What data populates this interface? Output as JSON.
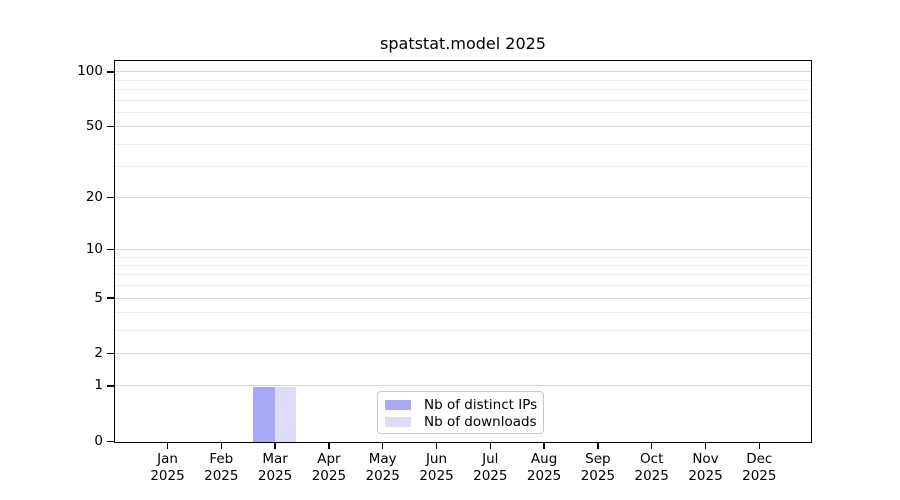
{
  "chart_data": {
    "type": "bar",
    "title": "spatstat.model 2025",
    "categories": [
      "Jan 2025",
      "Feb 2025",
      "Mar 2025",
      "Apr 2025",
      "May 2025",
      "Jun 2025",
      "Jul 2025",
      "Aug 2025",
      "Sep 2025",
      "Oct 2025",
      "Nov 2025",
      "Dec 2025"
    ],
    "series": [
      {
        "name": "Nb of distinct IPs",
        "color": "#a8a8f6",
        "values": [
          0,
          0,
          1,
          0,
          0,
          0,
          0,
          0,
          0,
          0,
          0,
          0
        ]
      },
      {
        "name": "Nb of downloads",
        "color": "#dcdcf9",
        "values": [
          0,
          0,
          1,
          0,
          0,
          0,
          0,
          0,
          0,
          0,
          0,
          0
        ]
      }
    ],
    "xlabel": "",
    "ylabel": "",
    "yscale": "log1p",
    "ylim": [
      0,
      113
    ],
    "y_major_ticks": [
      0,
      1,
      2,
      5,
      10,
      20,
      50,
      100
    ],
    "y_minor_gridlines": [
      3,
      4,
      6,
      7,
      8,
      9,
      30,
      40,
      60,
      70,
      80,
      90
    ],
    "grid": true,
    "legend_position": "lower center inside plot"
  },
  "colors": {
    "background": "#ffffff",
    "spine": "#000000",
    "grid_major": "#d6d6d6",
    "grid_minor": "#ededed",
    "text": "#000000",
    "legend_border": "#c9c9c9"
  }
}
